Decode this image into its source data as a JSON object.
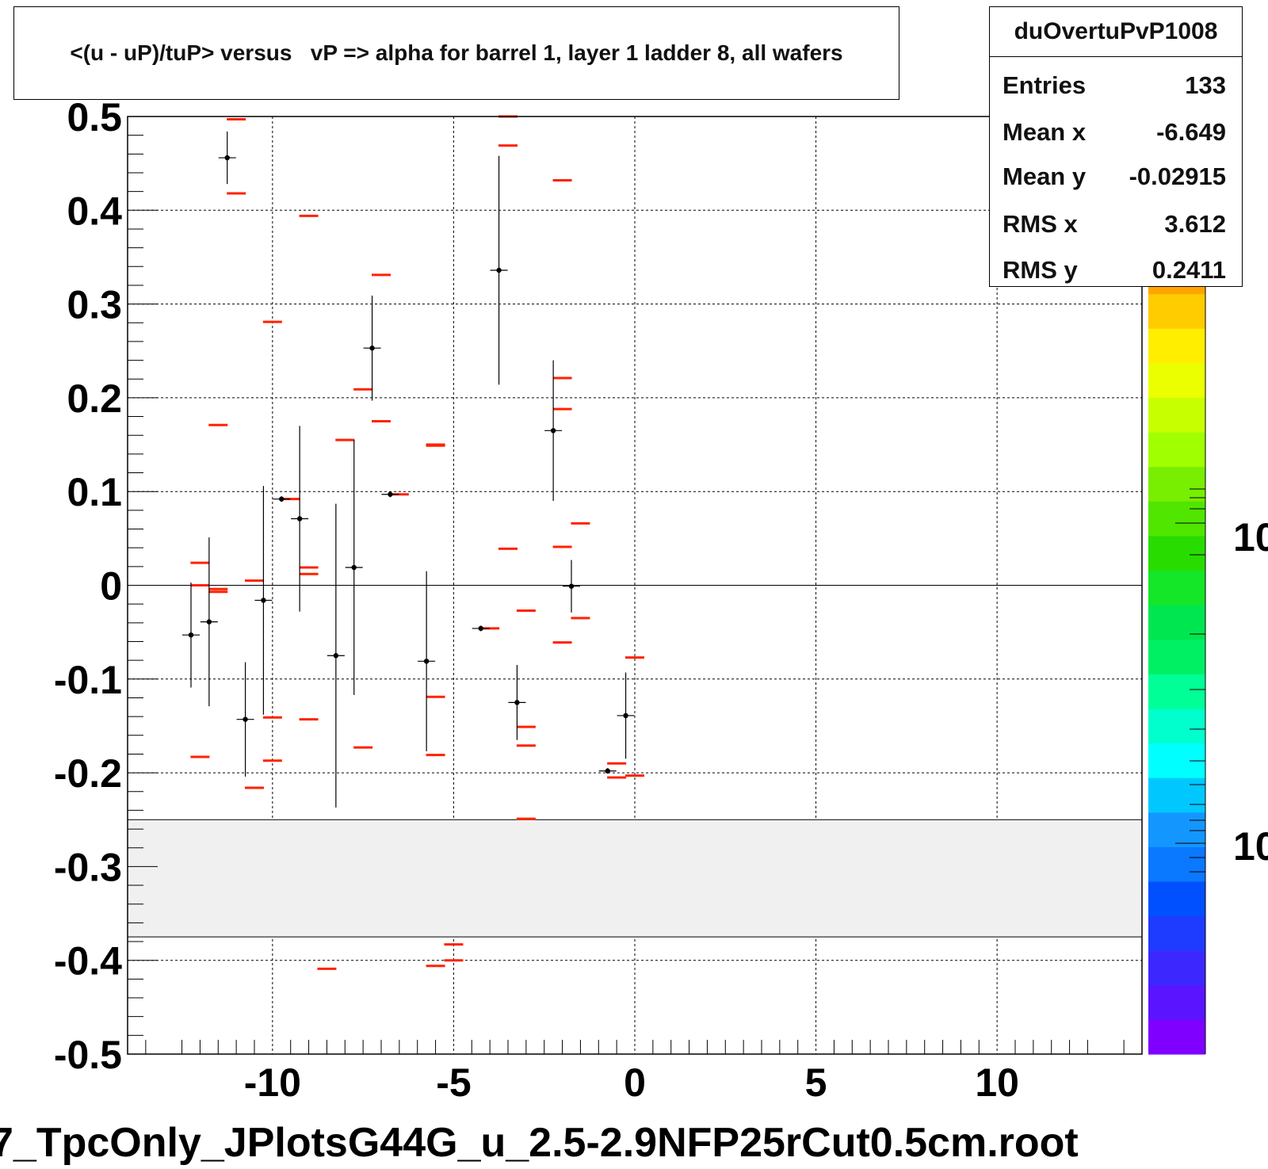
{
  "title": "<(u - uP)/tuP> versus   vP => alpha for barrel 1, layer 1 ladder 8, all wafers",
  "stats": {
    "name": "duOvertuPvP1008",
    "rows": [
      {
        "label": "Entries",
        "value": "133"
      },
      {
        "label": "Mean x",
        "value": "-6.649"
      },
      {
        "label": "Mean y",
        "value": "-0.02915"
      },
      {
        "label": "RMS x",
        "value": "3.612"
      },
      {
        "label": "RMS y",
        "value": "0.2411"
      }
    ]
  },
  "footer": "7_TpcOnly_JPlotsG44G_u_2.5-2.9NFP25rCut0.5cm.root",
  "colorbar": {
    "labels": [
      "10",
      "10"
    ],
    "colors": [
      "#7f00ff",
      "#5a14ff",
      "#3c28ff",
      "#1e3cff",
      "#0050ff",
      "#0a78ff",
      "#1496ff",
      "#00c8ff",
      "#00ffff",
      "#00ffcc",
      "#00ff96",
      "#00f064",
      "#00e650",
      "#14e628",
      "#28dc00",
      "#50e600",
      "#78ee00",
      "#a0ff00",
      "#c8ff00",
      "#ebff00",
      "#ffee00",
      "#ffcc00",
      "#ffa500"
    ]
  },
  "colors": {
    "profile": "#000000",
    "bars": "#ff2200",
    "band": "#f0f0f0"
  },
  "chart_data": {
    "type": "scatter",
    "title": "<(u - uP)/tuP> versus   vP => alpha for barrel 1, layer 1 ladder 8, all wafers",
    "xlabel": "",
    "ylabel": "",
    "xlim": [
      -14,
      14
    ],
    "ylim": [
      -0.5,
      0.5
    ],
    "x_ticks": [
      -10,
      -5,
      0,
      5,
      10
    ],
    "y_ticks": [
      0.5,
      0.4,
      0.3,
      0.2,
      0.1,
      0,
      -0.1,
      -0.2,
      -0.3,
      -0.4,
      -0.5
    ],
    "x_tick_labels": [
      "-10",
      "-5",
      "0",
      "5",
      "10"
    ],
    "y_tick_labels": [
      "0.5",
      "0.4",
      "0.3",
      "0.2",
      "0.1",
      "0",
      "-0.1",
      "-0.2",
      "-0.3",
      "-0.4",
      "-0.5"
    ],
    "grid": true,
    "excluded_band": [
      -0.375,
      -0.25
    ],
    "profile_points": [
      {
        "x": -12.25,
        "y": -0.053,
        "err": 0.056
      },
      {
        "x": -11.75,
        "y": -0.039,
        "err": 0.09
      },
      {
        "x": -11.25,
        "y": 0.456,
        "err": 0.028
      },
      {
        "x": -10.75,
        "y": -0.143,
        "err": 0.061
      },
      {
        "x": -10.25,
        "y": -0.016,
        "err": 0.122
      },
      {
        "x": -9.75,
        "y": 0.092,
        "err": 0.003
      },
      {
        "x": -9.25,
        "y": 0.071,
        "err": 0.099
      },
      {
        "x": -8.25,
        "y": -0.075,
        "err": 0.162
      },
      {
        "x": -7.75,
        "y": 0.019,
        "err": 0.136
      },
      {
        "x": -7.25,
        "y": 0.253,
        "err": 0.056
      },
      {
        "x": -6.75,
        "y": 0.097,
        "err": 0.003
      },
      {
        "x": -5.75,
        "y": -0.081,
        "err": 0.096
      },
      {
        "x": -4.25,
        "y": -0.046,
        "err": 0.003
      },
      {
        "x": -3.75,
        "y": 0.336,
        "err": 0.122
      },
      {
        "x": -3.25,
        "y": -0.125,
        "err": 0.04
      },
      {
        "x": -2.25,
        "y": 0.165,
        "err": 0.075
      },
      {
        "x": -1.75,
        "y": -0.001,
        "err": 0.028
      },
      {
        "x": -0.75,
        "y": -0.198,
        "err": 0.003
      },
      {
        "x": -0.25,
        "y": -0.139,
        "err": 0.046
      }
    ],
    "red_segments": [
      {
        "x": -12.0,
        "y": 0.024
      },
      {
        "x": -12.0,
        "y": -0.183
      },
      {
        "x": -12.0,
        "y": 0.0
      },
      {
        "x": -11.5,
        "y": 0.171
      },
      {
        "x": -11.5,
        "y": -0.004
      },
      {
        "x": -11.5,
        "y": -0.007
      },
      {
        "x": -11.0,
        "y": 0.497
      },
      {
        "x": -11.0,
        "y": 0.418
      },
      {
        "x": -10.5,
        "y": 0.005
      },
      {
        "x": -10.5,
        "y": -0.216
      },
      {
        "x": -10.0,
        "y": 0.281
      },
      {
        "x": -10.0,
        "y": -0.141
      },
      {
        "x": -10.0,
        "y": -0.187
      },
      {
        "x": -9.5,
        "y": 0.092
      },
      {
        "x": -9.0,
        "y": 0.394
      },
      {
        "x": -9.0,
        "y": 0.019
      },
      {
        "x": -9.0,
        "y": 0.012
      },
      {
        "x": -9.0,
        "y": -0.143
      },
      {
        "x": -8.5,
        "y": -0.409
      },
      {
        "x": -8.0,
        "y": 0.155
      },
      {
        "x": -7.5,
        "y": 0.209
      },
      {
        "x": -7.5,
        "y": -0.173
      },
      {
        "x": -7.0,
        "y": 0.331
      },
      {
        "x": -7.0,
        "y": 0.175
      },
      {
        "x": -6.5,
        "y": 0.097
      },
      {
        "x": -5.5,
        "y": 0.15
      },
      {
        "x": -5.5,
        "y": 0.149
      },
      {
        "x": -5.5,
        "y": -0.119
      },
      {
        "x": -5.5,
        "y": -0.181
      },
      {
        "x": -5.5,
        "y": -0.406
      },
      {
        "x": -5.0,
        "y": -0.383
      },
      {
        "x": -5.0,
        "y": -0.4
      },
      {
        "x": -4.0,
        "y": -0.046
      },
      {
        "x": -3.5,
        "y": 0.5
      },
      {
        "x": -3.5,
        "y": 0.469
      },
      {
        "x": -3.5,
        "y": 0.039
      },
      {
        "x": -3.0,
        "y": -0.027
      },
      {
        "x": -3.0,
        "y": -0.151
      },
      {
        "x": -3.0,
        "y": -0.171
      },
      {
        "x": -3.0,
        "y": -0.249
      },
      {
        "x": -2.0,
        "y": 0.432
      },
      {
        "x": -2.0,
        "y": 0.221
      },
      {
        "x": -2.0,
        "y": 0.188
      },
      {
        "x": -2.0,
        "y": 0.041
      },
      {
        "x": -2.0,
        "y": -0.061
      },
      {
        "x": -1.5,
        "y": 0.066
      },
      {
        "x": -1.5,
        "y": -0.035
      },
      {
        "x": -0.5,
        "y": -0.19
      },
      {
        "x": -0.5,
        "y": -0.205
      },
      {
        "x": 0.0,
        "y": -0.077
      },
      {
        "x": 0.0,
        "y": -0.203
      }
    ]
  }
}
